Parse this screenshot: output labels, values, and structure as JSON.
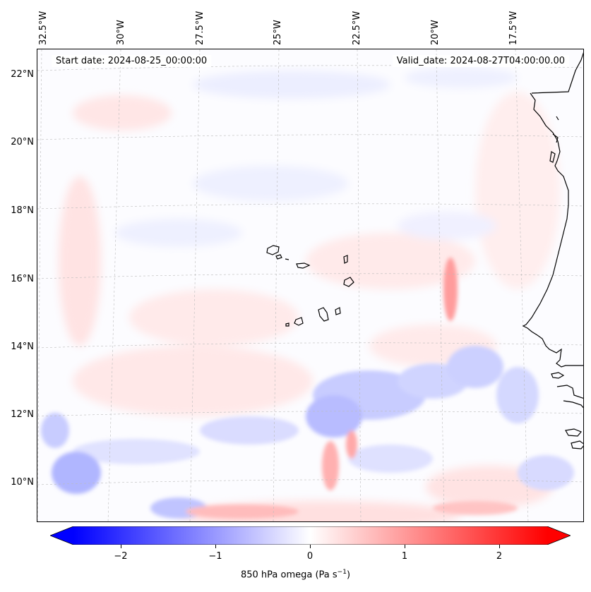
{
  "map": {
    "lon_labels": [
      "32.5°W",
      "30°W",
      "27.5°W",
      "25°W",
      "22.5°W",
      "20°W",
      "17.5°W"
    ],
    "lat_labels": [
      "22°N",
      "20°N",
      "18°N",
      "16°N",
      "14°N",
      "12°N",
      "10°N"
    ],
    "start_date": "Start date: 2024-08-25_00:00:00",
    "valid_date": "Valid_date: 2024-08-27T04:00:00.00",
    "extent": {
      "lon_min": -33.0,
      "lon_max": -15.5,
      "lat_min": 8.9,
      "lat_max": 22.8
    }
  },
  "colorbar": {
    "ticks": [
      "−2",
      "−1",
      "0",
      "1",
      "2"
    ],
    "tick_values": [
      -2,
      -1,
      0,
      1,
      2
    ],
    "range": [
      -2.5,
      2.5
    ],
    "label_main": "850 hPa omega (Pa s",
    "label_exp": "−1",
    "label_end": ")",
    "colors": {
      "negative": "#0000ff",
      "zero": "#ffffff",
      "positive": "#ff0000"
    }
  }
}
